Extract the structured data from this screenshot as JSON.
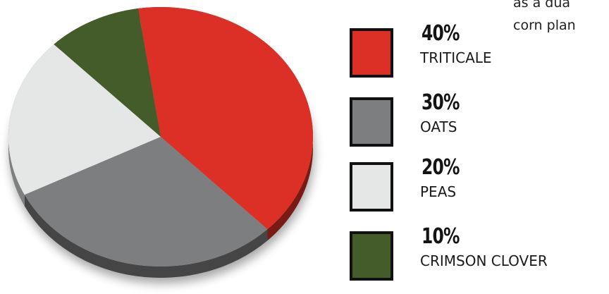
{
  "corner_text": [
    "as a dua",
    "corn plan"
  ],
  "chart_data": {
    "type": "pie",
    "title": "",
    "slices": [
      {
        "percent_label": "40%",
        "label": "TRITICALE",
        "value": 40,
        "color": "#dc2f25"
      },
      {
        "percent_label": "30%",
        "label": "OATS",
        "value": 30,
        "color": "#7d7e80"
      },
      {
        "percent_label": "20%",
        "label": "PEAS",
        "value": 20,
        "color": "#e5e6e6"
      },
      {
        "percent_label": "10%",
        "label": "CRIMSON CLOVER",
        "value": 10,
        "color": "#445b2a"
      }
    ],
    "legend_position": "right"
  }
}
